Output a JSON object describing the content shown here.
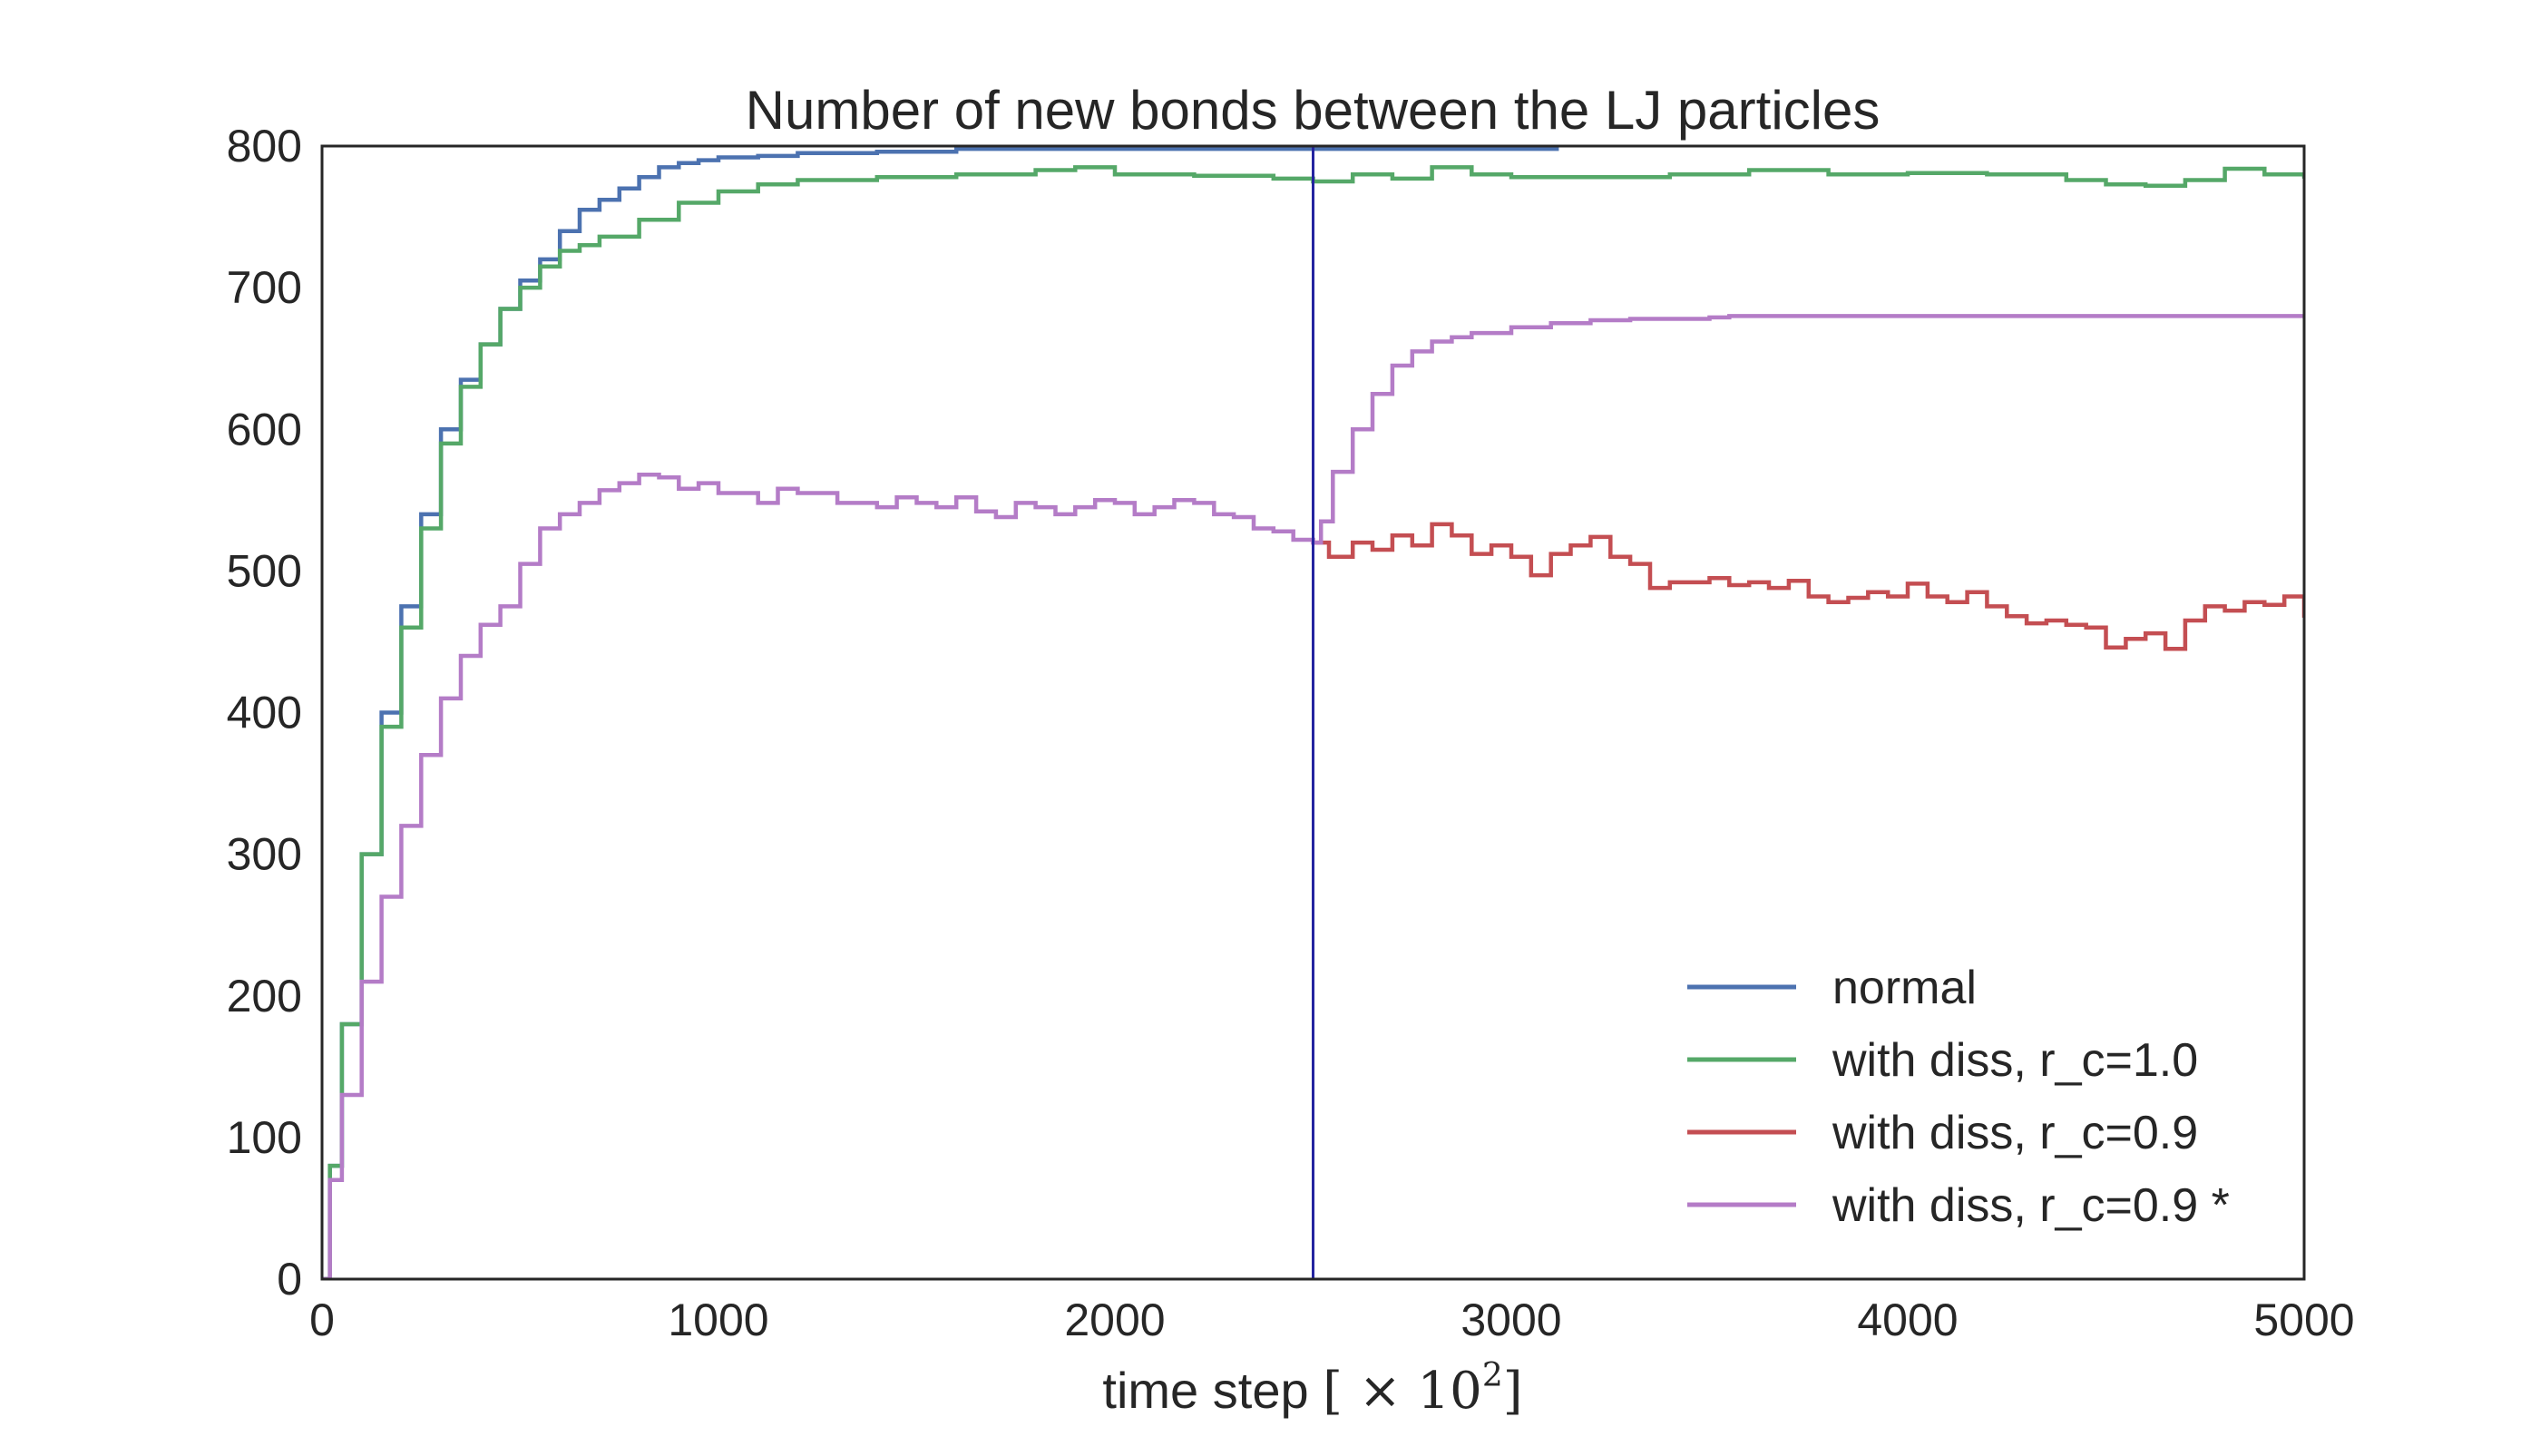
{
  "chart_data": {
    "type": "line",
    "title": "Number of new bonds between the LJ particles",
    "xlabel_text": "time step ",
    "xlabel_unit": "[ × 10",
    "xlabel_exp": "2",
    "xlabel_close": "]",
    "ylabel": "",
    "xlim": [
      0,
      5000
    ],
    "ylim": [
      0,
      800
    ],
    "xticks": [
      0,
      1000,
      2000,
      3000,
      4000,
      5000
    ],
    "yticks": [
      0,
      100,
      200,
      300,
      400,
      500,
      600,
      700,
      800
    ],
    "xtick_labels": [
      "0",
      "1000",
      "2000",
      "3000",
      "4000",
      "5000"
    ],
    "ytick_labels": [
      "0",
      "100",
      "200",
      "300",
      "400",
      "500",
      "600",
      "700",
      "800"
    ],
    "grid": false,
    "legend_position": "lower-right",
    "vline": {
      "x": 2500,
      "color": "#2424a0"
    },
    "series": [
      {
        "name": "normal",
        "color": "#4c72b0",
        "x": [
          0,
          20,
          50,
          100,
          150,
          200,
          250,
          300,
          350,
          400,
          450,
          500,
          550,
          600,
          650,
          700,
          750,
          800,
          850,
          900,
          950,
          1000,
          1100,
          1200,
          1400,
          1600,
          2000,
          2500,
          3000,
          3120
        ],
        "y": [
          0,
          80,
          180,
          300,
          400,
          475,
          540,
          600,
          635,
          660,
          685,
          705,
          720,
          740,
          755,
          762,
          770,
          778,
          785,
          788,
          790,
          792,
          793,
          795,
          796,
          798,
          798,
          798,
          798,
          798
        ]
      },
      {
        "name": "with diss, r_c=1.0",
        "color": "#55a868",
        "x": [
          0,
          20,
          50,
          100,
          150,
          200,
          250,
          300,
          350,
          400,
          450,
          500,
          550,
          600,
          650,
          700,
          800,
          900,
          1000,
          1100,
          1200,
          1400,
          1600,
          1800,
          1900,
          2000,
          2200,
          2400,
          2500,
          2600,
          2700,
          2800,
          2900,
          3000,
          3200,
          3400,
          3600,
          3800,
          4000,
          4200,
          4400,
          4500,
          4600,
          4700,
          4800,
          4900,
          5000
        ],
        "y": [
          0,
          80,
          180,
          300,
          390,
          460,
          530,
          590,
          630,
          660,
          685,
          700,
          715,
          726,
          730,
          736,
          748,
          760,
          768,
          773,
          776,
          778,
          780,
          783,
          785,
          780,
          779,
          777,
          775,
          780,
          777,
          785,
          780,
          778,
          778,
          780,
          783,
          780,
          781,
          780,
          776,
          773,
          772,
          776,
          784,
          780,
          777
        ]
      },
      {
        "name": "with diss, r_c=0.9",
        "color": "#c44e52",
        "x": [
          2500,
          2540,
          2600,
          2650,
          2700,
          2750,
          2800,
          2850,
          2900,
          2950,
          3000,
          3050,
          3100,
          3150,
          3200,
          3250,
          3300,
          3350,
          3400,
          3450,
          3500,
          3550,
          3600,
          3650,
          3700,
          3750,
          3800,
          3850,
          3900,
          3950,
          4000,
          4050,
          4100,
          4150,
          4200,
          4250,
          4300,
          4350,
          4400,
          4450,
          4500,
          4550,
          4600,
          4650,
          4700,
          4750,
          4800,
          4850,
          4900,
          4950,
          5000
        ],
        "y": [
          520,
          510,
          520,
          515,
          525,
          518,
          533,
          525,
          512,
          518,
          510,
          497,
          512,
          518,
          524,
          510,
          505,
          488,
          492,
          492,
          495,
          490,
          492,
          488,
          493,
          482,
          478,
          481,
          485,
          482,
          491,
          482,
          478,
          485,
          475,
          468,
          463,
          465,
          462,
          460,
          446,
          452,
          456,
          445,
          465,
          475,
          472,
          478,
          476,
          482,
          467
        ]
      },
      {
        "name": "with diss, r_c=0.9 *",
        "color": "#b47cc7",
        "x": [
          0,
          20,
          50,
          100,
          150,
          200,
          250,
          300,
          350,
          400,
          450,
          500,
          550,
          600,
          650,
          700,
          750,
          800,
          850,
          900,
          950,
          1000,
          1100,
          1150,
          1200,
          1300,
          1400,
          1450,
          1500,
          1550,
          1600,
          1650,
          1700,
          1750,
          1800,
          1850,
          1900,
          1950,
          2000,
          2050,
          2100,
          2150,
          2200,
          2250,
          2300,
          2350,
          2400,
          2450,
          2500,
          2520,
          2550,
          2600,
          2650,
          2700,
          2750,
          2800,
          2850,
          2900,
          3000,
          3100,
          3200,
          3300,
          3400,
          3500,
          3550,
          3600,
          3800,
          4000,
          4200,
          4400,
          4600,
          4800,
          5000
        ],
        "y": [
          0,
          70,
          130,
          210,
          270,
          320,
          370,
          410,
          440,
          462,
          475,
          505,
          530,
          540,
          548,
          557,
          562,
          568,
          566,
          558,
          562,
          555,
          548,
          558,
          555,
          548,
          545,
          552,
          548,
          545,
          552,
          542,
          538,
          548,
          545,
          540,
          545,
          550,
          548,
          540,
          545,
          550,
          548,
          540,
          538,
          530,
          528,
          522,
          520,
          535,
          570,
          600,
          625,
          645,
          655,
          662,
          665,
          668,
          672,
          675,
          677,
          678,
          678,
          679,
          680,
          680,
          680,
          680,
          680,
          680,
          680,
          680,
          680
        ]
      }
    ]
  }
}
